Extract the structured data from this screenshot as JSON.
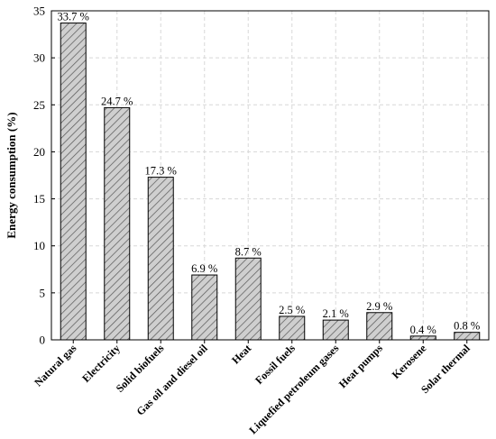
{
  "chart_data": {
    "type": "bar",
    "categories": [
      "Natural gas",
      "Electricity",
      "Solid biofuels",
      "Gas oil and diesel oil",
      "Heat",
      "Fossil fuels",
      "Liquefied petroleum gases",
      "Heat pumps",
      "Kerosene",
      "Solar thermal"
    ],
    "values": [
      33.7,
      24.7,
      17.3,
      6.9,
      8.7,
      2.5,
      2.1,
      2.9,
      0.4,
      0.8
    ],
    "data_labels": [
      "33.7 %",
      "24.7 %",
      "17.3 %",
      "6.9 %",
      "8.7 %",
      "2.5 %",
      "2.1 %",
      "2.9 %",
      "0.4 %",
      "0.8 %"
    ],
    "title": "",
    "xlabel": "",
    "ylabel": "Energy consumption (%)",
    "ylim": [
      0,
      35
    ],
    "yticks": [
      0,
      5,
      10,
      15,
      20,
      25,
      30,
      35
    ],
    "grid": true,
    "bar_fill": "hatched",
    "bar_color": "#c8c8c8",
    "grid_color": "#d8d8d8"
  }
}
